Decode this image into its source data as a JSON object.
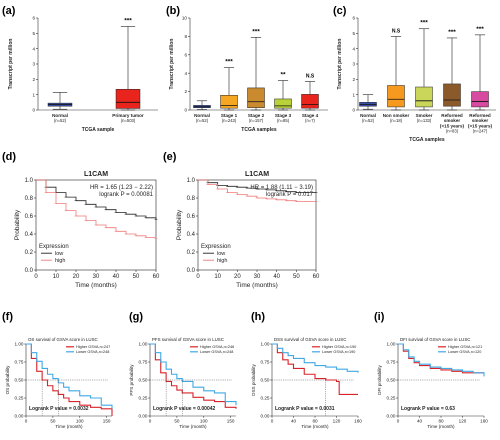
{
  "panels": {
    "a": {
      "label": "(a)"
    },
    "b": {
      "label": "(b)"
    },
    "c": {
      "label": "(c)"
    },
    "d": {
      "label": "(d)"
    },
    "e": {
      "label": "(e)"
    },
    "f": {
      "label": "(f)"
    },
    "g": {
      "label": "(g)"
    },
    "h": {
      "label": "(h)"
    },
    "i": {
      "label": "(i)"
    }
  },
  "colors": {
    "normal": "#3a4fa8",
    "tumor": "#e8241c",
    "black": "#222222",
    "red_km": "#f07a7a",
    "cyan": "#3fa9e6",
    "red_gsva": "#d8232a"
  },
  "chart_data": [
    {
      "id": "a",
      "type": "box",
      "ylabel": "Transcript per million",
      "xlabel": "TCGA sample",
      "ylim": [
        0,
        6
      ],
      "yticks": [
        0,
        1,
        2,
        3,
        4,
        5,
        6
      ],
      "categories": [
        "Normal",
        "Primary tumor"
      ],
      "counts": [
        "(n=52)",
        "(n=503)"
      ],
      "boxes": [
        {
          "whisker_low": 0.05,
          "q1": 0.25,
          "median": 0.35,
          "q3": 0.45,
          "whisker_high": 1.15,
          "color": "#3a4fa8"
        },
        {
          "whisker_low": 0.0,
          "q1": 0.1,
          "median": 0.5,
          "q3": 1.35,
          "whisker_high": 5.45,
          "color": "#e8241c"
        }
      ],
      "significance": [
        "",
        "***"
      ]
    },
    {
      "id": "b",
      "type": "box",
      "ylabel": "Transcript per million",
      "xlabel": "TCGA samples",
      "ylim": [
        0,
        10
      ],
      "yticks": [
        0,
        2,
        4,
        6,
        8,
        10
      ],
      "categories": [
        "Normal",
        "Stage 1",
        "Stage 2",
        "Stage 3",
        "Stage 4"
      ],
      "counts": [
        "(n=52)",
        "(n=243)",
        "(n=157)",
        "(n=85)",
        "(n=7)"
      ],
      "boxes": [
        {
          "whisker_low": 0.05,
          "q1": 0.25,
          "median": 0.35,
          "q3": 0.5,
          "whisker_high": 1.0,
          "color": "#3a4fa8"
        },
        {
          "whisker_low": 0.0,
          "q1": 0.2,
          "median": 0.5,
          "q3": 1.6,
          "whisker_high": 4.6,
          "color": "#f5a623"
        },
        {
          "whisker_low": 0.0,
          "q1": 0.25,
          "median": 0.9,
          "q3": 2.4,
          "whisker_high": 7.9,
          "color": "#c98a30"
        },
        {
          "whisker_low": 0.0,
          "q1": 0.2,
          "median": 0.45,
          "q3": 1.2,
          "whisker_high": 3.2,
          "color": "#b9d23a"
        },
        {
          "whisker_low": 0.0,
          "q1": 0.2,
          "median": 0.6,
          "q3": 1.7,
          "whisker_high": 3.1,
          "color": "#e8241c"
        }
      ],
      "significance": [
        "",
        "***",
        "***",
        "**",
        "N.S"
      ]
    },
    {
      "id": "c",
      "type": "box",
      "ylabel": "Transcript per million",
      "xlabel": "TCGA samples",
      "ylim": [
        0,
        6
      ],
      "yticks": [
        0,
        1,
        2,
        3,
        4,
        5,
        6
      ],
      "categories": [
        "Normal",
        "Non smoker",
        "Smoker",
        "Reformed smoker (<15 years)",
        "Reformed smoker (>15 years)"
      ],
      "category_lines": [
        [
          "Normal"
        ],
        [
          "Non smoker"
        ],
        [
          "Smoker"
        ],
        [
          "Reformed",
          "smoker",
          "(<15 years)"
        ],
        [
          "Reformed",
          "smoker",
          "(>15 years)"
        ]
      ],
      "counts": [
        "(n=52)",
        "(n=18)",
        "(n=133)",
        "(n=83)",
        "(n=247)"
      ],
      "boxes": [
        {
          "whisker_low": 0.05,
          "q1": 0.25,
          "median": 0.35,
          "q3": 0.5,
          "whisker_high": 1.0,
          "color": "#3a4fa8"
        },
        {
          "whisker_low": 0.0,
          "q1": 0.2,
          "median": 0.7,
          "q3": 1.6,
          "whisker_high": 4.8,
          "color": "#f59a1e"
        },
        {
          "whisker_low": 0.0,
          "q1": 0.2,
          "median": 0.6,
          "q3": 1.5,
          "whisker_high": 5.3,
          "color": "#c9d65a"
        },
        {
          "whisker_low": 0.0,
          "q1": 0.25,
          "median": 0.65,
          "q3": 1.7,
          "whisker_high": 4.7,
          "color": "#8a5a2a"
        },
        {
          "whisker_low": 0.0,
          "q1": 0.2,
          "median": 0.55,
          "q3": 1.2,
          "whisker_high": 4.9,
          "color": "#d64aa0"
        }
      ],
      "significance": [
        "",
        "N.S",
        "***",
        "***",
        "***"
      ]
    },
    {
      "id": "d",
      "type": "line",
      "title": "L1CAM",
      "xlabel": "Time (months)",
      "ylabel": "Probability",
      "xlim": [
        0,
        60
      ],
      "ylim": [
        0,
        1
      ],
      "xticks": [
        0,
        10,
        20,
        30,
        40,
        50,
        60
      ],
      "yticks": [
        0.0,
        0.2,
        0.4,
        0.6,
        0.8,
        1.0
      ],
      "annotations": [
        "HR = 1.65 (1.23 − 2.22)",
        "logrank P = 0.00081"
      ],
      "legend_title": "Expression",
      "series": [
        {
          "name": "low",
          "color": "#222222",
          "x": [
            0,
            5,
            10,
            15,
            20,
            25,
            30,
            35,
            40,
            45,
            50,
            55,
            60
          ],
          "y": [
            1.0,
            0.92,
            0.86,
            0.81,
            0.77,
            0.73,
            0.7,
            0.67,
            0.64,
            0.62,
            0.6,
            0.58,
            0.56
          ]
        },
        {
          "name": "high",
          "color": "#f07a7a",
          "x": [
            0,
            5,
            10,
            15,
            20,
            25,
            30,
            35,
            40,
            45,
            50,
            55,
            60
          ],
          "y": [
            1.0,
            0.86,
            0.74,
            0.66,
            0.6,
            0.55,
            0.5,
            0.47,
            0.43,
            0.4,
            0.38,
            0.36,
            0.35
          ]
        }
      ]
    },
    {
      "id": "e",
      "type": "line",
      "title": "L1CAM",
      "xlabel": "Time (months)",
      "ylabel": "Probability",
      "xlim": [
        0,
        60
      ],
      "ylim": [
        0,
        1
      ],
      "xticks": [
        0,
        10,
        20,
        30,
        40,
        50,
        60
      ],
      "yticks": [
        0.0,
        0.2,
        0.4,
        0.6,
        0.8,
        1.0
      ],
      "annotations": [
        "HR = 1.88 (1.11 − 3.19)",
        "logrank P = 0.017"
      ],
      "legend_title": "Expression",
      "series": [
        {
          "name": "low",
          "color": "#222222",
          "x": [
            0,
            5,
            10,
            15,
            20,
            25,
            30,
            35,
            40,
            45,
            50,
            55,
            60
          ],
          "y": [
            1.0,
            0.97,
            0.94,
            0.93,
            0.92,
            0.91,
            0.9,
            0.89,
            0.88,
            0.87,
            0.86,
            0.86,
            0.86
          ]
        },
        {
          "name": "high",
          "color": "#f07a7a",
          "x": [
            0,
            5,
            10,
            15,
            20,
            25,
            30,
            35,
            40,
            45,
            50,
            55,
            60
          ],
          "y": [
            1.0,
            0.95,
            0.9,
            0.86,
            0.84,
            0.82,
            0.8,
            0.79,
            0.78,
            0.77,
            0.76,
            0.76,
            0.76
          ]
        }
      ]
    },
    {
      "id": "f",
      "type": "line",
      "title": "OS survival of GSVA score in LUSC",
      "xlabel": "Time (month)",
      "ylabel": "OS probability",
      "xlim": [
        0,
        160
      ],
      "ylim": [
        0,
        1
      ],
      "xticks": [
        0,
        50,
        100,
        150
      ],
      "yticks": [
        0.0,
        0.25,
        0.5,
        0.75,
        1.0
      ],
      "annotations": [
        "Logrank P value = 0.0032"
      ],
      "series": [
        {
          "name": "Higher GSVA,n=247",
          "color": "#d8232a",
          "x": [
            0,
            10,
            20,
            30,
            40,
            50,
            60,
            70,
            80,
            100,
            120,
            140,
            160
          ],
          "y": [
            1.0,
            0.8,
            0.62,
            0.5,
            0.42,
            0.35,
            0.3,
            0.25,
            0.2,
            0.15,
            0.12,
            0.1,
            0.0
          ]
        },
        {
          "name": "Lower GSVA,n=248",
          "color": "#3fa9e6",
          "x": [
            0,
            10,
            20,
            30,
            40,
            50,
            60,
            70,
            80,
            100,
            120,
            140,
            160
          ],
          "y": [
            1.0,
            0.88,
            0.76,
            0.66,
            0.58,
            0.52,
            0.46,
            0.4,
            0.35,
            0.28,
            0.25,
            0.15,
            0.1
          ]
        }
      ]
    },
    {
      "id": "g",
      "type": "line",
      "title": "PFS survival of GSVA score in LUSC",
      "xlabel": "Time (month)",
      "ylabel": "PFS probability",
      "xlim": [
        0,
        160
      ],
      "ylim": [
        0,
        1
      ],
      "xticks": [
        0,
        50,
        100,
        150
      ],
      "yticks": [
        0.0,
        0.25,
        0.5,
        0.75,
        1.0
      ],
      "annotations": [
        "Logrank P value = 0.00042"
      ],
      "series": [
        {
          "name": "Higher GSVA,n=246",
          "color": "#d8232a",
          "x": [
            0,
            10,
            20,
            30,
            40,
            50,
            60,
            80,
            100,
            120,
            140,
            160
          ],
          "y": [
            1.0,
            0.78,
            0.6,
            0.48,
            0.42,
            0.36,
            0.32,
            0.26,
            0.22,
            0.2,
            0.12,
            0.1
          ]
        },
        {
          "name": "Lower GSVA,n=248",
          "color": "#3fa9e6",
          "x": [
            0,
            10,
            20,
            30,
            40,
            50,
            60,
            80,
            100,
            120,
            140,
            160
          ],
          "y": [
            1.0,
            0.88,
            0.75,
            0.65,
            0.58,
            0.52,
            0.48,
            0.4,
            0.35,
            0.32,
            0.2,
            0.15
          ]
        }
      ]
    },
    {
      "id": "h",
      "type": "line",
      "title": "DSS survival of GSVA score in LUSC",
      "xlabel": "Time (month)",
      "ylabel": "DSS probability",
      "xlim": [
        0,
        160
      ],
      "ylim": [
        0,
        1
      ],
      "xticks": [
        0,
        40,
        80,
        120,
        160
      ],
      "yticks": [
        0.0,
        0.25,
        0.5,
        0.75,
        1.0
      ],
      "annotations": [
        "Logrank P value = 0.0031"
      ],
      "series": [
        {
          "name": "Higher GSVA,n=190",
          "color": "#d8232a",
          "x": [
            0,
            10,
            20,
            30,
            40,
            60,
            80,
            100,
            120,
            125,
            160
          ],
          "y": [
            1.0,
            0.88,
            0.78,
            0.72,
            0.66,
            0.58,
            0.52,
            0.5,
            0.48,
            0.3,
            0.3
          ]
        },
        {
          "name": "Lower GSVA,n=190",
          "color": "#3fa9e6",
          "x": [
            0,
            10,
            20,
            30,
            40,
            60,
            80,
            100,
            120,
            140,
            160
          ],
          "y": [
            1.0,
            0.94,
            0.88,
            0.84,
            0.8,
            0.74,
            0.7,
            0.68,
            0.65,
            0.62,
            0.6
          ]
        }
      ]
    },
    {
      "id": "i",
      "type": "line",
      "title": "DFI survival of GSVA score in LUSC",
      "xlabel": "Time (month)",
      "ylabel": "DFI probability",
      "xlim": [
        0,
        160
      ],
      "ylim": [
        0,
        1
      ],
      "xticks": [
        0,
        40,
        80,
        120,
        160
      ],
      "yticks": [
        0.0,
        0.25,
        0.5,
        0.75,
        1.0
      ],
      "annotations": [
        "Logrank P value = 0.63"
      ],
      "series": [
        {
          "name": "Higher GSVA,n=121",
          "color": "#d8232a",
          "x": [
            0,
            10,
            20,
            30,
            40,
            60,
            80,
            100,
            120,
            140,
            160
          ],
          "y": [
            1.0,
            0.9,
            0.8,
            0.74,
            0.7,
            0.66,
            0.64,
            0.62,
            0.6,
            0.6,
            0.6
          ]
        },
        {
          "name": "Lower GSVA,n=120",
          "color": "#3fa9e6",
          "x": [
            0,
            10,
            20,
            30,
            40,
            60,
            80,
            100,
            120,
            140,
            160
          ],
          "y": [
            1.0,
            0.92,
            0.82,
            0.76,
            0.72,
            0.68,
            0.66,
            0.64,
            0.62,
            0.6,
            0.55
          ]
        }
      ]
    }
  ]
}
